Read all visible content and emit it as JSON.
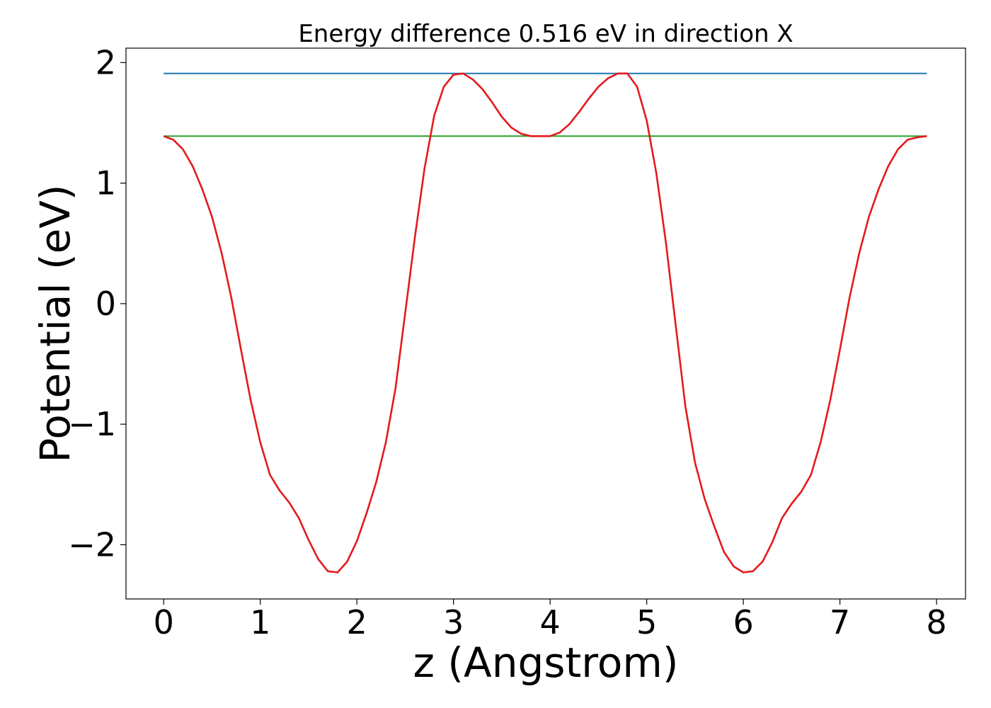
{
  "chart_data": {
    "type": "line",
    "title": "Energy difference 0.516 eV in direction X",
    "xlabel": "z (Angstrom)",
    "ylabel": "Potential (eV)",
    "xlim": [
      -0.39,
      8.3
    ],
    "ylim": [
      -2.45,
      2.12
    ],
    "xticks": [
      0,
      1,
      2,
      3,
      4,
      5,
      6,
      7,
      8
    ],
    "yticks": [
      -2,
      -1,
      0,
      1,
      2
    ],
    "xtick_labels": [
      "0",
      "1",
      "2",
      "3",
      "4",
      "5",
      "6",
      "7",
      "8"
    ],
    "ytick_labels": [
      "−2",
      "−1",
      "0",
      "1",
      "2"
    ],
    "grid": false,
    "legend": "none",
    "series": [
      {
        "color": "#1f77b4",
        "x": [
          0.0,
          7.9
        ],
        "y": [
          1.91,
          1.91
        ]
      },
      {
        "color": "#2ca02c",
        "x": [
          0.0,
          7.9
        ],
        "y": [
          1.39,
          1.39
        ]
      },
      {
        "color": "#e41a1c",
        "x": [
          0.0,
          0.1,
          0.2,
          0.3,
          0.4,
          0.5,
          0.6,
          0.7,
          0.8,
          0.9,
          1.0,
          1.1,
          1.2,
          1.3,
          1.4,
          1.5,
          1.6,
          1.7,
          1.8,
          1.9,
          2.0,
          2.1,
          2.2,
          2.3,
          2.4,
          2.5,
          2.6,
          2.7,
          2.8,
          2.9,
          3.0,
          3.1,
          3.2,
          3.3,
          3.4,
          3.5,
          3.6,
          3.7,
          3.8,
          3.9,
          3.95,
          4.0,
          4.1,
          4.2,
          4.3,
          4.4,
          4.5,
          4.6,
          4.7,
          4.8,
          4.9,
          5.0,
          5.1,
          5.2,
          5.3,
          5.4,
          5.5,
          5.6,
          5.7,
          5.8,
          5.9,
          6.0,
          6.1,
          6.2,
          6.3,
          6.4,
          6.5,
          6.6,
          6.7,
          6.8,
          6.9,
          7.0,
          7.1,
          7.2,
          7.3,
          7.4,
          7.5,
          7.6,
          7.7,
          7.8,
          7.9
        ],
        "y": [
          1.39,
          1.36,
          1.28,
          1.14,
          0.95,
          0.72,
          0.42,
          0.05,
          -0.38,
          -0.8,
          -1.15,
          -1.42,
          -1.55,
          -1.65,
          -1.78,
          -1.96,
          -2.12,
          -2.22,
          -2.23,
          -2.14,
          -1.97,
          -1.74,
          -1.48,
          -1.15,
          -0.7,
          -0.08,
          0.55,
          1.12,
          1.56,
          1.8,
          1.9,
          1.91,
          1.86,
          1.78,
          1.67,
          1.55,
          1.46,
          1.41,
          1.39,
          1.39,
          1.39,
          1.39,
          1.42,
          1.49,
          1.59,
          1.7,
          1.8,
          1.87,
          1.91,
          1.91,
          1.8,
          1.52,
          1.08,
          0.5,
          -0.18,
          -0.85,
          -1.32,
          -1.62,
          -1.85,
          -2.06,
          -2.18,
          -2.23,
          -2.22,
          -2.14,
          -1.98,
          -1.78,
          -1.66,
          -1.56,
          -1.42,
          -1.15,
          -0.8,
          -0.38,
          0.05,
          0.42,
          0.72,
          0.95,
          1.14,
          1.28,
          1.36,
          1.38,
          1.39
        ]
      }
    ]
  }
}
